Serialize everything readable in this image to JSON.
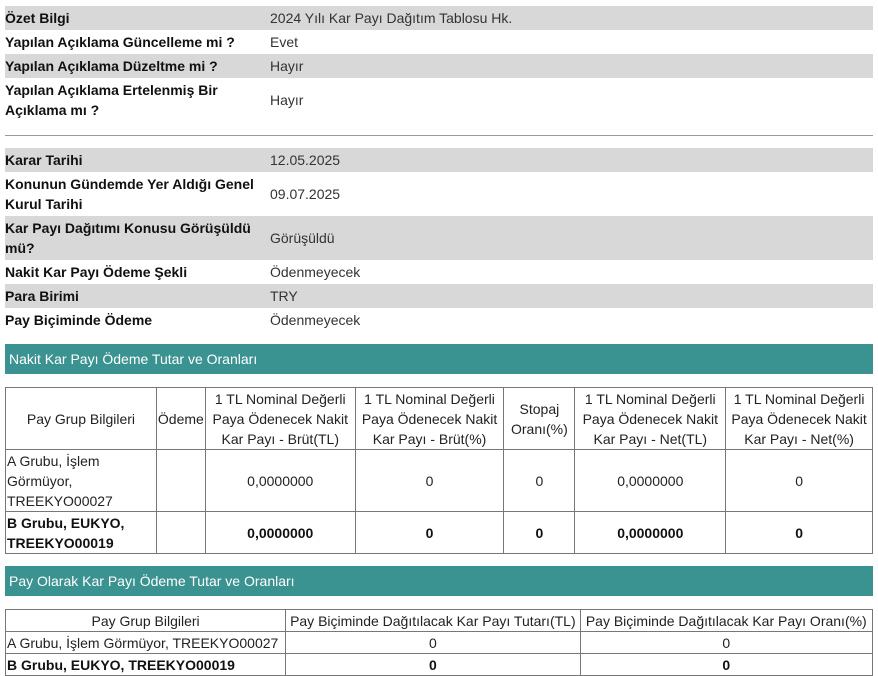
{
  "summary": [
    {
      "label": "Özet Bilgi",
      "value": "2024 Yılı Kar Payı Dağıtım Tablosu Hk."
    },
    {
      "label": "Yapılan Açıklama Güncelleme mi ?",
      "value": "Evet"
    },
    {
      "label": "Yapılan Açıklama Düzeltme mi ?",
      "value": "Hayır"
    },
    {
      "label": "Yapılan Açıklama Ertelenmiş Bir Açıklama mı ?",
      "value": "Hayır"
    }
  ],
  "details": [
    {
      "label": "Karar Tarihi",
      "value": "12.05.2025"
    },
    {
      "label": "Konunun Gündemde Yer Aldığı Genel Kurul Tarihi",
      "value": "09.07.2025"
    },
    {
      "label": "Kar Payı Dağıtımı Konusu Görüşüldü mü?",
      "value": "Görüşüldü"
    },
    {
      "label": "Nakit Kar Payı Ödeme Şekli",
      "value": "Ödenmeyecek"
    },
    {
      "label": "Para Birimi",
      "value": "TRY"
    },
    {
      "label": "Pay Biçiminde Ödeme",
      "value": "Ödenmeyecek"
    }
  ],
  "cash_section": {
    "title": "Nakit Kar Payı Ödeme Tutar ve Oranları",
    "headers": [
      "Pay Grup Bilgileri",
      "Ödeme",
      "1 TL Nominal Değerli Paya Ödenecek Nakit Kar Payı - Brüt(TL)",
      "1 TL Nominal Değerli Paya Ödenecek Nakit Kar Payı - Brüt(%)",
      "Stopaj Oranı(%)",
      "1 TL Nominal Değerli Paya Ödenecek Nakit Kar Payı - Net(TL)",
      "1 TL Nominal Değerli Paya Ödenecek Nakit Kar Payı - Net(%)"
    ],
    "rows": [
      {
        "group": "A Grubu, İşlem Görmüyor, TREEKYO00027",
        "odeme": "",
        "brut_tl": "0,0000000",
        "brut_pct": "0",
        "stopaj": "0",
        "net_tl": "0,0000000",
        "net_pct": "0"
      },
      {
        "group": "B Grubu, EUKYO, TREEKYO00019",
        "odeme": "",
        "brut_tl": "0,0000000",
        "brut_pct": "0",
        "stopaj": "0",
        "net_tl": "0,0000000",
        "net_pct": "0"
      }
    ]
  },
  "share_section": {
    "title": "Pay Olarak Kar Payı Ödeme Tutar ve Oranları",
    "headers": [
      "Pay Grup Bilgileri",
      "Pay Biçiminde Dağıtılacak Kar Payı Tutarı(TL)",
      "Pay Biçiminde Dağıtılacak Kar Payı Oranı(%)"
    ],
    "rows": [
      {
        "group": "A Grubu, İşlem Görmüyor, TREEKYO00027",
        "amount": "0",
        "rate": "0"
      },
      {
        "group": "B Grubu, EUKYO, TREEKYO00019",
        "amount": "0",
        "rate": "0"
      }
    ]
  }
}
